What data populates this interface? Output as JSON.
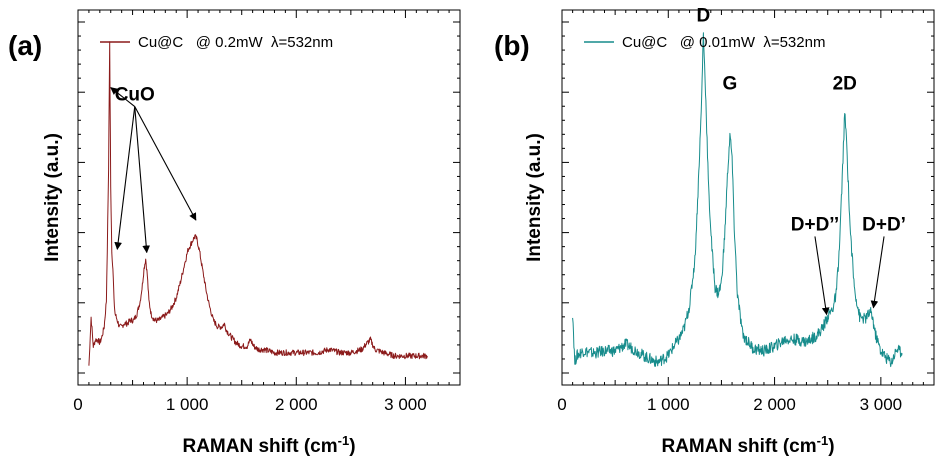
{
  "chart_data": [
    {
      "type": "line",
      "panel_label": "(a)",
      "xlabel": "RAMAN shift (cm",
      "xlabel_sup": "-1",
      "xlabel_suffix": ")",
      "ylabel": "Intensity (a.u.)",
      "xlim": [
        0,
        3500
      ],
      "xticks": [
        0,
        1000,
        2000,
        3000
      ],
      "xtick_labels": [
        "0",
        "1 000",
        "2 000",
        "3 000"
      ],
      "ylim": [
        -0.06,
        1.1
      ],
      "y_tick_labels_shown": false,
      "grid": false,
      "legend_position": "top-left",
      "series": [
        {
          "name": "Cu@C   @ 0.2mW  λ=532nm",
          "color": "#8B1A1A",
          "x": [
            100,
            120,
            140,
            160,
            180,
            200,
            220,
            240,
            260,
            280,
            290,
            300,
            310,
            320,
            330,
            340,
            360,
            380,
            400,
            420,
            450,
            480,
            510,
            540,
            570,
            590,
            605,
            620,
            635,
            650,
            670,
            700,
            740,
            780,
            820,
            860,
            900,
            940,
            980,
            1010,
            1040,
            1070,
            1090,
            1110,
            1140,
            1170,
            1200,
            1240,
            1280,
            1320,
            1340,
            1360,
            1400,
            1450,
            1500,
            1550,
            1580,
            1610,
            1650,
            1700,
            1800,
            1900,
            2000,
            2100,
            2200,
            2300,
            2400,
            2500,
            2600,
            2650,
            2680,
            2720,
            2800,
            2900,
            3000,
            3100,
            3200
          ],
          "y": [
            0.0,
            0.15,
            0.06,
            0.08,
            0.08,
            0.07,
            0.09,
            0.12,
            0.2,
            0.6,
            1.0,
            0.55,
            0.35,
            0.3,
            0.2,
            0.16,
            0.14,
            0.12,
            0.12,
            0.13,
            0.13,
            0.14,
            0.14,
            0.16,
            0.2,
            0.25,
            0.3,
            0.33,
            0.28,
            0.2,
            0.16,
            0.14,
            0.14,
            0.15,
            0.16,
            0.18,
            0.21,
            0.26,
            0.32,
            0.36,
            0.38,
            0.4,
            0.39,
            0.36,
            0.3,
            0.24,
            0.19,
            0.14,
            0.12,
            0.12,
            0.13,
            0.11,
            0.09,
            0.07,
            0.06,
            0.06,
            0.08,
            0.06,
            0.05,
            0.05,
            0.04,
            0.04,
            0.04,
            0.04,
            0.04,
            0.05,
            0.04,
            0.04,
            0.05,
            0.07,
            0.08,
            0.05,
            0.04,
            0.03,
            0.03,
            0.03,
            0.03
          ]
        }
      ],
      "annotations": [
        {
          "text": "CuO",
          "label_x": 520,
          "label_y": 0.82,
          "targets": [
            [
              300,
              0.86
            ],
            [
              360,
              0.36
            ],
            [
              630,
              0.35
            ],
            [
              1080,
              0.45
            ]
          ]
        }
      ]
    },
    {
      "type": "line",
      "panel_label": "(b)",
      "xlabel": "RAMAN shift (cm",
      "xlabel_sup": "-1",
      "xlabel_suffix": ")",
      "ylabel": "Intensity (a.u.)",
      "xlim": [
        0,
        3500
      ],
      "xticks": [
        0,
        1000,
        2000,
        3000
      ],
      "xtick_labels": [
        "0",
        "1 000",
        "2 000",
        "3 000"
      ],
      "ylim": [
        -0.1,
        1.55
      ],
      "y_tick_labels_shown": false,
      "grid": false,
      "legend_position": "top-left",
      "series": [
        {
          "name": "Cu@C   @ 0.01mW  λ=532nm",
          "color": "#178C8C",
          "x": [
            100,
            120,
            140,
            200,
            300,
            400,
            500,
            600,
            700,
            800,
            900,
            1000,
            1050,
            1100,
            1150,
            1200,
            1250,
            1280,
            1310,
            1330,
            1350,
            1380,
            1410,
            1440,
            1470,
            1500,
            1530,
            1560,
            1580,
            1600,
            1620,
            1650,
            1700,
            1800,
            1900,
            2000,
            2100,
            2200,
            2300,
            2400,
            2450,
            2500,
            2550,
            2580,
            2610,
            2640,
            2660,
            2680,
            2710,
            2750,
            2800,
            2850,
            2900,
            2920,
            2950,
            3000,
            3050,
            3100,
            3150,
            3200
          ],
          "y": [
            0.22,
            0.0,
            0.03,
            0.05,
            0.04,
            0.05,
            0.05,
            0.08,
            0.05,
            0.02,
            0.0,
            0.03,
            0.07,
            0.1,
            0.15,
            0.25,
            0.45,
            0.75,
            1.1,
            1.45,
            1.2,
            0.75,
            0.5,
            0.33,
            0.3,
            0.35,
            0.55,
            0.85,
            1.0,
            0.9,
            0.6,
            0.3,
            0.12,
            0.06,
            0.05,
            0.07,
            0.1,
            0.1,
            0.09,
            0.12,
            0.15,
            0.2,
            0.24,
            0.3,
            0.5,
            0.85,
            1.1,
            0.95,
            0.6,
            0.33,
            0.2,
            0.19,
            0.22,
            0.2,
            0.12,
            0.05,
            0.02,
            0.0,
            0.06,
            0.04
          ]
        }
      ],
      "annotations": [
        {
          "text": "D",
          "label_x": 1330,
          "label_y": 1.5,
          "targets": []
        },
        {
          "text": "G",
          "label_x": 1580,
          "label_y": 1.2,
          "targets": []
        },
        {
          "text": "2D",
          "label_x": 2660,
          "label_y": 1.2,
          "targets": []
        },
        {
          "text": "D+D’’",
          "label_x": 2380,
          "label_y": 0.58,
          "targets": [
            [
              2490,
              0.21
            ]
          ]
        },
        {
          "text": "D+D’",
          "label_x": 3030,
          "label_y": 0.58,
          "targets": [
            [
              2930,
              0.24
            ]
          ]
        }
      ]
    }
  ]
}
